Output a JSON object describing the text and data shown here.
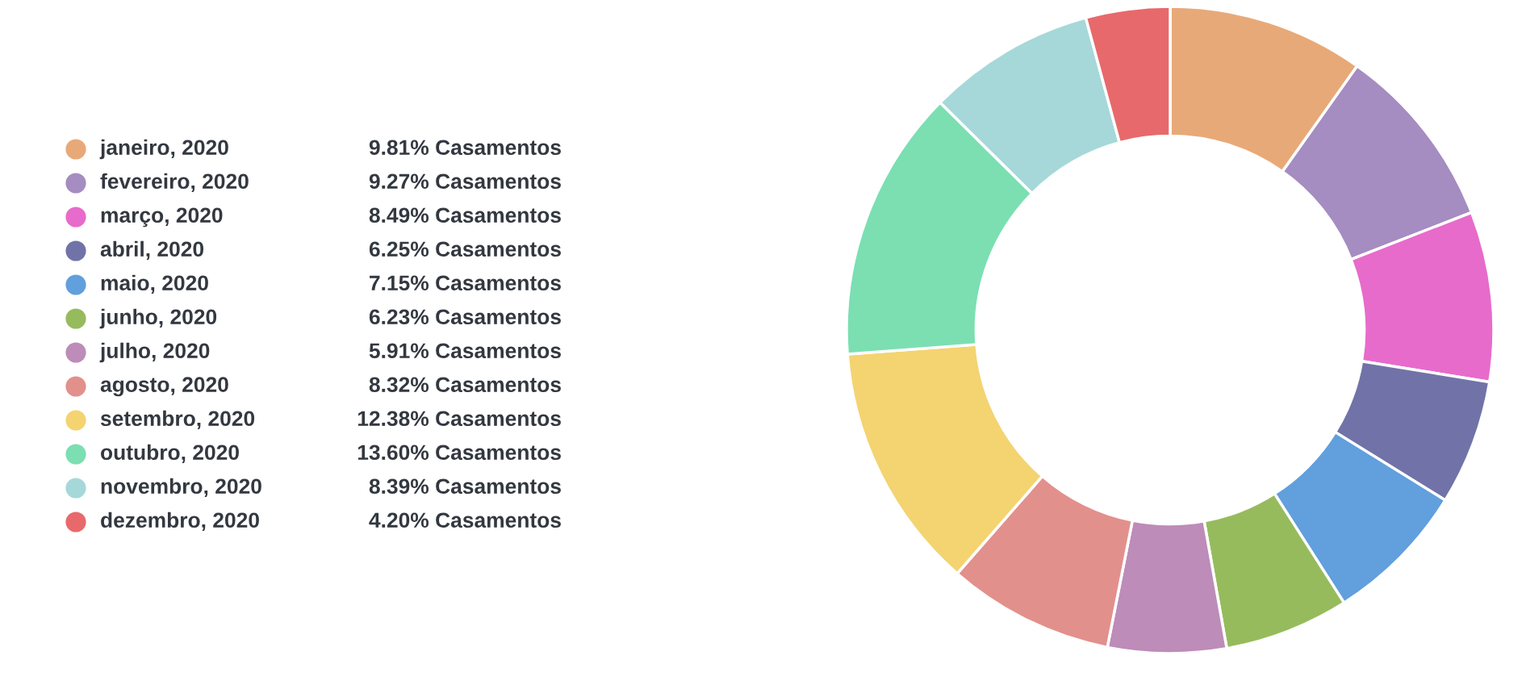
{
  "chart_data": {
    "type": "donut",
    "categories": [
      "janeiro, 2020",
      "fevereiro, 2020",
      "março, 2020",
      "abril, 2020",
      "maio, 2020",
      "junho, 2020",
      "julho, 2020",
      "agosto, 2020",
      "setembro, 2020",
      "outubro, 2020",
      "novembro, 2020",
      "dezembro, 2020"
    ],
    "values": [
      9.81,
      9.27,
      8.49,
      6.25,
      7.15,
      6.23,
      5.91,
      8.32,
      12.38,
      13.6,
      8.39,
      4.2
    ],
    "value_labels": [
      "9.81% Casamentos",
      "9.27% Casamentos",
      "8.49% Casamentos",
      "6.25% Casamentos",
      "7.15% Casamentos",
      "6.23% Casamentos",
      "5.91% Casamentos",
      "8.32% Casamentos",
      "12.38% Casamentos",
      "13.60% Casamentos",
      "8.39% Casamentos",
      "4.20% Casamentos"
    ],
    "colors": [
      "#e8a978",
      "#a58cc1",
      "#e76bcb",
      "#7173a8",
      "#619fdd",
      "#96bb5d",
      "#bd8cb8",
      "#e2908c",
      "#f4d371",
      "#7bdfb2",
      "#a6d8d9",
      "#e8696b"
    ],
    "legend": "left"
  }
}
